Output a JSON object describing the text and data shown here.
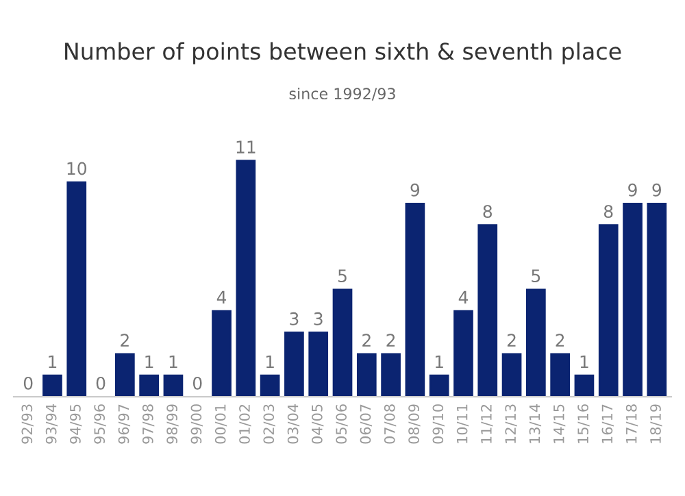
{
  "chart_data": {
    "type": "bar",
    "title": "Number of points between sixth & seventh place",
    "subtitle": "since 1992/93",
    "categories": [
      "92/93",
      "93/94",
      "94/95",
      "95/96",
      "96/97",
      "97/98",
      "98/99",
      "99/00",
      "00/01",
      "01/02",
      "02/03",
      "03/04",
      "04/05",
      "05/06",
      "06/07",
      "07/08",
      "08/09",
      "09/10",
      "10/11",
      "11/12",
      "12/13",
      "13/14",
      "14/15",
      "15/16",
      "16/17",
      "17/18",
      "18/19"
    ],
    "values": [
      0,
      1,
      10,
      0,
      2,
      1,
      1,
      0,
      4,
      11,
      1,
      3,
      3,
      5,
      2,
      2,
      9,
      1,
      4,
      8,
      2,
      5,
      2,
      1,
      8,
      9,
      9
    ],
    "color": "#0b2471",
    "data_labels": true,
    "tick_labels": "x",
    "grid": false,
    "legend": false
  }
}
